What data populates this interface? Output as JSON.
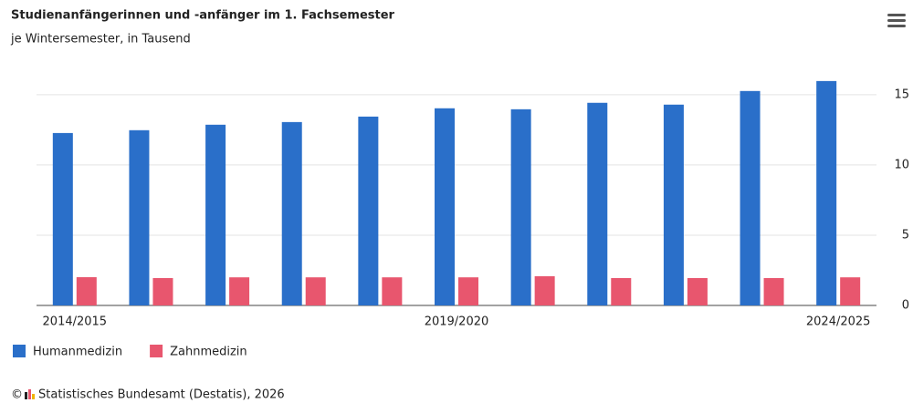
{
  "chart_data": {
    "type": "bar",
    "title": "Studienanfängerinnen und -anfänger im 1. Fachsemester",
    "subtitle": "je Wintersemester, in Tausend",
    "categories": [
      "2014/2015",
      null,
      null,
      null,
      null,
      "2019/2020",
      null,
      null,
      null,
      null,
      "2024/2025"
    ],
    "series": [
      {
        "name": "Humanmedizin",
        "color": "#2a6fc9",
        "values": [
          12.27,
          12.47,
          12.86,
          13.05,
          13.44,
          14.03,
          13.96,
          14.42,
          14.29,
          15.26,
          15.97
        ]
      },
      {
        "name": "Zahnmedizin",
        "color": "#e8566e",
        "values": [
          2.01,
          1.95,
          2.0,
          2.0,
          2.0,
          2.0,
          2.08,
          1.95,
          1.95,
          1.95,
          2.0
        ]
      }
    ],
    "ylim": [
      0,
      17
    ],
    "yticks": [
      0,
      5,
      10,
      15
    ],
    "grid": true,
    "copyright": "©",
    "source": "Statistisches Bundesamt (Destatis), 2026"
  }
}
